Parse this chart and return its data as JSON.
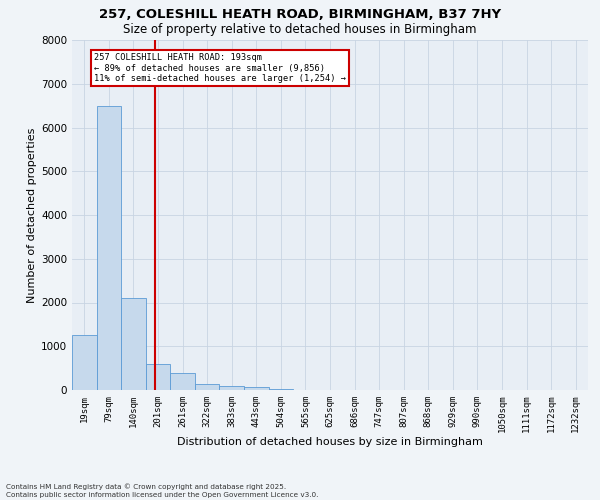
{
  "title_line1": "257, COLESHILL HEATH ROAD, BIRMINGHAM, B37 7HY",
  "title_line2": "Size of property relative to detached houses in Birmingham",
  "xlabel": "Distribution of detached houses by size in Birmingham",
  "ylabel": "Number of detached properties",
  "bar_labels": [
    "19sqm",
    "79sqm",
    "140sqm",
    "201sqm",
    "261sqm",
    "322sqm",
    "383sqm",
    "443sqm",
    "504sqm",
    "565sqm",
    "625sqm",
    "686sqm",
    "747sqm",
    "807sqm",
    "868sqm",
    "929sqm",
    "990sqm",
    "1050sqm",
    "1111sqm",
    "1172sqm",
    "1232sqm"
  ],
  "bar_values": [
    1250,
    6500,
    2100,
    600,
    380,
    145,
    100,
    58,
    28,
    8,
    4,
    3,
    2,
    1,
    1,
    0,
    0,
    0,
    0,
    0,
    0
  ],
  "bar_color": "#c6d9ec",
  "bar_edge_color": "#5b9bd5",
  "grid_color": "#c8d4e3",
  "property_line_x": 2.87,
  "annotation_text_line1": "257 COLESHILL HEATH ROAD: 193sqm",
  "annotation_text_line2": "← 89% of detached houses are smaller (9,856)",
  "annotation_text_line3": "11% of semi-detached houses are larger (1,254) →",
  "annotation_box_color": "#ffffff",
  "annotation_box_edge": "#cc0000",
  "red_line_color": "#cc0000",
  "ylim": [
    0,
    8000
  ],
  "yticks": [
    0,
    1000,
    2000,
    3000,
    4000,
    5000,
    6000,
    7000,
    8000
  ],
  "footer_line1": "Contains HM Land Registry data © Crown copyright and database right 2025.",
  "footer_line2": "Contains public sector information licensed under the Open Government Licence v3.0.",
  "bg_color": "#e8eef5",
  "fig_bg_color": "#f0f4f8"
}
